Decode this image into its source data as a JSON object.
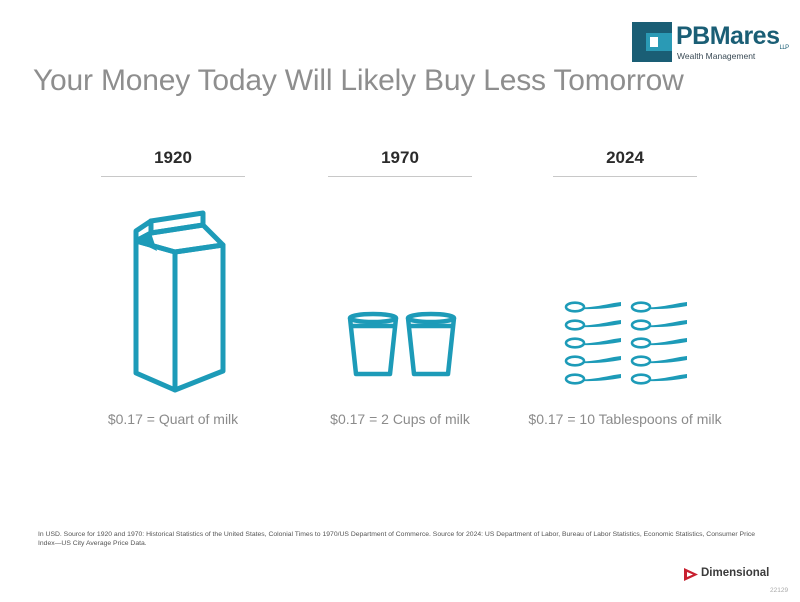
{
  "header": {
    "logo_name": "PBMares",
    "logo_tm": "LLP",
    "logo_subtitle": "Wealth Management",
    "title": "Your Money Today Will Likely Buy Less Tomorrow"
  },
  "columns": [
    {
      "year": "1920",
      "caption": "$0.17 = Quart of milk",
      "icon": "milk-carton-icon",
      "count": 1
    },
    {
      "year": "1970",
      "caption": "$0.17 = 2 Cups of milk",
      "icon": "cup-icon",
      "count": 2
    },
    {
      "year": "2024",
      "caption": "$0.17 = 10 Tablespoons of milk",
      "icon": "tablespoon-icon",
      "count": 10
    }
  ],
  "footnote": "In USD. Source for 1920 and 1970: Historical Statistics of the United States, Colonial Times to 1970/US Department of Commerce. Source for 2024: US Department of Labor, Bureau of Labor Statistics, Economic Statistics, Consumer Price Index—US City Average Price Data.",
  "footer": {
    "brand": "Dimensional",
    "code": "22129"
  },
  "colors": {
    "accent": "#1d9bb8",
    "brand": "#1a5e75",
    "brand_light": "#2a9ab5",
    "title": "#8e8e8e",
    "dimensional_red": "#c8202f"
  }
}
